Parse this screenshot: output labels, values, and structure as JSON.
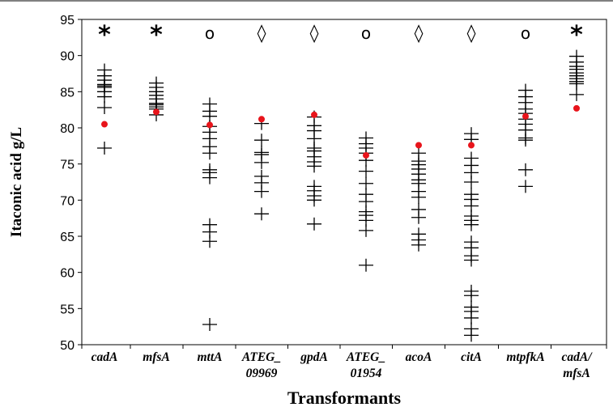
{
  "chart_data": {
    "type": "scatter",
    "title": "",
    "xlabel": "Transformants",
    "ylabel": "Itaconic acid  g/L",
    "ylim": [
      50,
      95
    ],
    "yticks": [
      50,
      55,
      60,
      65,
      70,
      75,
      80,
      85,
      90,
      95
    ],
    "grid": false,
    "legend": "none",
    "colors": {
      "replicate_marker": "#000000",
      "reference_point": "#e8141b"
    },
    "categories": [
      {
        "label": [
          "cadA"
        ],
        "significance": "*",
        "replicates": [
          77.2,
          82.8,
          84.3,
          85.0,
          85.6,
          85.8,
          86.0,
          86.6,
          87.2,
          88.0
        ],
        "reference": 80.5
      },
      {
        "label": [
          "mfsA"
        ],
        "significance": "*",
        "replicates": [
          81.8,
          82.6,
          82.9,
          83.2,
          83.4,
          84.0,
          84.5,
          85.0,
          85.6,
          86.2
        ],
        "reference": 82.2
      },
      {
        "label": [
          "mttA"
        ],
        "significance": "o",
        "replicates": [
          52.8,
          64.3,
          65.6,
          66.6,
          73.1,
          73.8,
          74.2,
          76.5,
          77.4,
          78.5,
          79.4,
          80.2,
          81.6,
          82.3,
          83.3
        ],
        "reference": 80.4
      },
      {
        "label": [
          "ATEG_",
          "09969"
        ],
        "significance": "◊",
        "replicates": [
          68.1,
          71.2,
          72.4,
          73.3,
          75.2,
          76.3,
          76.6,
          78.3,
          80.6
        ],
        "reference": 81.2
      },
      {
        "label": [
          "gpdA"
        ],
        "significance": "◊",
        "replicates": [
          66.7,
          70.0,
          70.6,
          71.3,
          71.9,
          74.7,
          75.3,
          76.0,
          76.8,
          77.2,
          78.5,
          79.6,
          80.3,
          81.5
        ],
        "reference": 81.8
      },
      {
        "label": [
          "ATEG_",
          "01954"
        ],
        "significance": "o",
        "replicates": [
          61.0,
          65.8,
          67.2,
          67.9,
          68.4,
          69.8,
          70.8,
          72.3,
          74.0,
          75.5,
          76.5,
          77.2,
          77.8,
          78.6
        ],
        "reference": 76.2
      },
      {
        "label": [
          "acoA"
        ],
        "significance": "◊",
        "replicates": [
          63.8,
          64.5,
          65.3,
          67.6,
          68.7,
          70.4,
          71.2,
          72.3,
          72.8,
          73.6,
          74.3,
          74.9,
          75.4,
          76.5
        ],
        "reference": 77.6
      },
      {
        "label": [
          "citA"
        ],
        "significance": "◊",
        "replicates": [
          51.3,
          52.2,
          53.7,
          54.6,
          55.2,
          56.8,
          57.4,
          61.7,
          62.3,
          63.4,
          64.2,
          66.6,
          67.2,
          67.8,
          69.2,
          70.1,
          70.8,
          72.5,
          73.8,
          74.8,
          75.8,
          78.4,
          79.2
        ],
        "reference": 77.6
      },
      {
        "label": [
          "mtpfkA"
        ],
        "significance": "o",
        "replicates": [
          71.9,
          74.2,
          78.3,
          78.6,
          79.7,
          80.5,
          81.2,
          82.0,
          82.6,
          83.5,
          84.3,
          85.2
        ],
        "reference": 81.6
      },
      {
        "label": [
          "cadA/",
          "mfsA"
        ],
        "significance": "*",
        "replicates": [
          84.6,
          86.1,
          86.4,
          86.8,
          87.2,
          87.6,
          88.1,
          88.5,
          89.1,
          89.9
        ],
        "reference": 82.7
      }
    ]
  }
}
